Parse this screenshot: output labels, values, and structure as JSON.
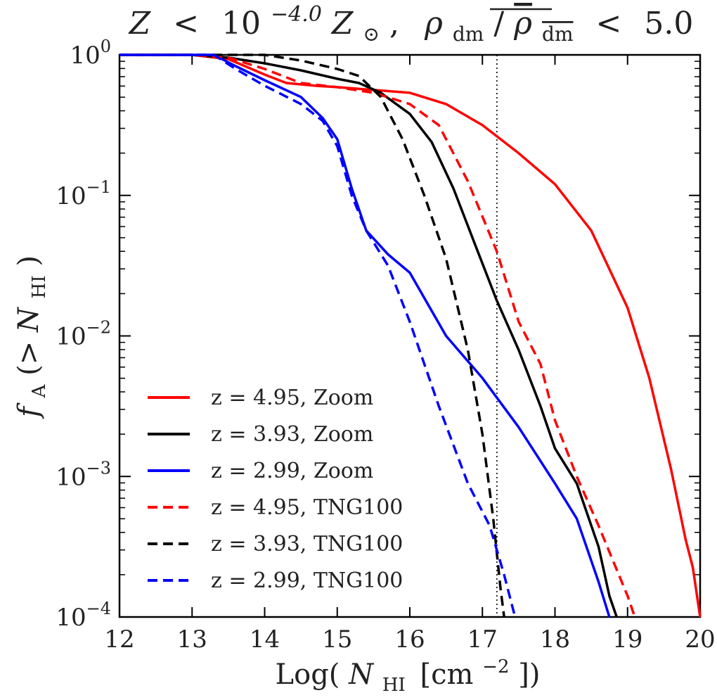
{
  "chart_data": {
    "type": "line",
    "title": "Z < 10^-4.0 Z☉,  ρdm/ρ̄dm < 5.0",
    "title_parts": {
      "lhs_var": "Z",
      "lt1": "<",
      "base": "10",
      "exponent": "−4.0",
      "z_sym": "Z",
      "sun": "⊙",
      "sep": ",",
      "rho": "ρ",
      "dm_sub": "dm",
      "slash": "/",
      "rho_bar": "ρ",
      "dm_sub2": "dm",
      "lt2": "<",
      "value": "5.0"
    },
    "xlabel": "Log(N_HI [cm^-2])",
    "xlabel_parts": {
      "prefix": "Log(",
      "n": "N",
      "hi": "HI",
      "unit": "[cm",
      "exp": "−2",
      "suffix": "])"
    },
    "ylabel": "f_A(> N_HI)",
    "ylabel_parts": {
      "f": "f",
      "a": "A",
      "gt": "(> ",
      "n": "N",
      "hi": "HI",
      "close": ")"
    },
    "xlim": [
      12,
      20
    ],
    "ylim_log10": [
      -4,
      0
    ],
    "yscale": "log",
    "x_ticks": [
      "12",
      "13",
      "14",
      "15",
      "16",
      "17",
      "18",
      "19",
      "20"
    ],
    "y_ticks": [
      {
        "base": "10",
        "exp": "0",
        "log": 0
      },
      {
        "base": "10",
        "exp": "−1",
        "log": -1
      },
      {
        "base": "10",
        "exp": "−2",
        "log": -2
      },
      {
        "base": "10",
        "exp": "−3",
        "log": -3
      },
      {
        "base": "10",
        "exp": "−4",
        "log": -4
      }
    ],
    "vline_x": 17.2,
    "legend_position": "lower-left",
    "series": [
      {
        "name": "z = 4.95,  Zoom",
        "color": "#ff0000",
        "style": "solid",
        "x": [
          12.0,
          13.0,
          13.5,
          14.0,
          14.3,
          14.7,
          15.0,
          15.5,
          16.0,
          16.5,
          17.0,
          17.5,
          18.0,
          18.5,
          19.0,
          19.3,
          19.6,
          19.8,
          19.9,
          20.0
        ],
        "y": [
          0.0,
          0.0,
          -0.03,
          -0.14,
          -0.2,
          -0.22,
          -0.23,
          -0.25,
          -0.27,
          -0.35,
          -0.5,
          -0.7,
          -0.92,
          -1.25,
          -1.8,
          -2.3,
          -2.95,
          -3.45,
          -3.65,
          -4.0
        ]
      },
      {
        "name": "z = 3.93,  Zoom",
        "color": "#000000",
        "style": "solid",
        "x": [
          12.0,
          13.0,
          13.5,
          14.0,
          14.5,
          15.0,
          15.3,
          15.6,
          16.0,
          16.3,
          16.6,
          16.9,
          17.2,
          17.5,
          17.8,
          18.0,
          18.3,
          18.6,
          18.75,
          18.85
        ],
        "y": [
          0.0,
          0.0,
          -0.02,
          -0.06,
          -0.11,
          -0.17,
          -0.2,
          -0.27,
          -0.42,
          -0.62,
          -0.95,
          -1.35,
          -1.75,
          -2.1,
          -2.5,
          -2.8,
          -3.05,
          -3.5,
          -3.85,
          -4.0
        ]
      },
      {
        "name": "z = 2.99,  Zoom",
        "color": "#0000ff",
        "style": "solid",
        "x": [
          12.0,
          13.0,
          13.3,
          13.6,
          14.0,
          14.5,
          14.8,
          15.0,
          15.2,
          15.4,
          15.7,
          16.0,
          16.5,
          17.0,
          17.5,
          18.0,
          18.3,
          18.6,
          18.75
        ],
        "y": [
          0.0,
          0.0,
          0.0,
          -0.08,
          -0.18,
          -0.3,
          -0.45,
          -0.6,
          -0.95,
          -1.25,
          -1.42,
          -1.55,
          -2.0,
          -2.3,
          -2.65,
          -3.05,
          -3.3,
          -3.75,
          -4.0
        ]
      },
      {
        "name": "z = 4.95,  TNG100",
        "color": "#ff0000",
        "style": "dashed",
        "x": [
          12.0,
          13.0,
          13.5,
          14.0,
          14.5,
          15.0,
          15.5,
          16.0,
          16.4,
          16.8,
          17.2,
          17.5,
          17.8,
          18.0,
          18.3,
          18.6,
          18.8,
          19.0,
          19.1
        ],
        "y": [
          0.0,
          0.0,
          -0.02,
          -0.1,
          -0.2,
          -0.23,
          -0.27,
          -0.35,
          -0.5,
          -0.9,
          -1.4,
          -1.9,
          -2.2,
          -2.6,
          -3.0,
          -3.35,
          -3.6,
          -3.85,
          -4.0
        ]
      },
      {
        "name": "z = 3.93,  TNG100",
        "color": "#000000",
        "style": "dashed",
        "x": [
          12.0,
          13.0,
          13.5,
          14.0,
          14.5,
          15.0,
          15.3,
          15.6,
          15.9,
          16.2,
          16.5,
          16.8,
          17.0,
          17.15,
          17.25,
          17.3
        ],
        "y": [
          0.0,
          0.0,
          0.0,
          0.0,
          -0.04,
          -0.1,
          -0.15,
          -0.3,
          -0.6,
          -1.0,
          -1.45,
          -2.1,
          -2.7,
          -3.3,
          -3.8,
          -4.0
        ]
      },
      {
        "name": "z = 2.99,  TNG100",
        "color": "#0000ff",
        "style": "dashed",
        "x": [
          12.0,
          13.0,
          13.3,
          13.6,
          14.0,
          14.5,
          14.8,
          15.0,
          15.2,
          15.4,
          15.7,
          16.0,
          16.4,
          16.8,
          17.1,
          17.3,
          17.45
        ],
        "y": [
          0.0,
          0.0,
          0.0,
          -0.1,
          -0.22,
          -0.35,
          -0.47,
          -0.65,
          -1.0,
          -1.25,
          -1.5,
          -1.9,
          -2.5,
          -3.05,
          -3.35,
          -3.7,
          -4.0
        ]
      }
    ]
  }
}
